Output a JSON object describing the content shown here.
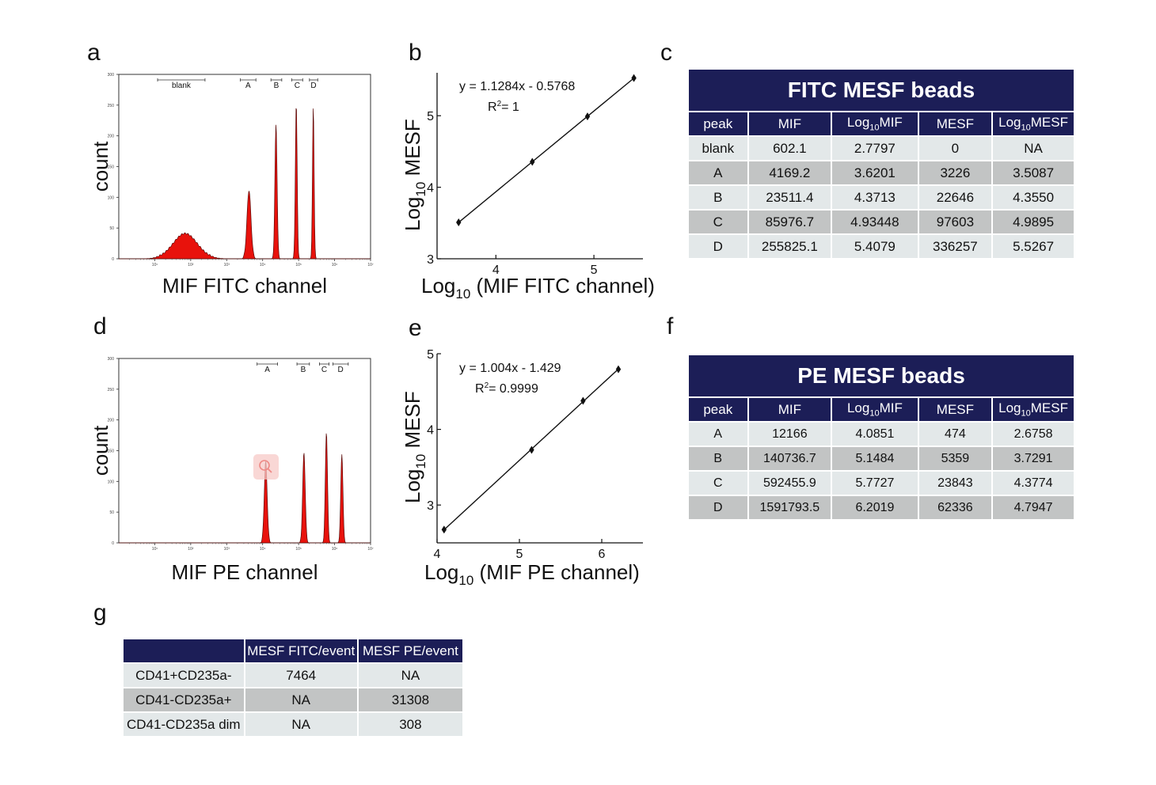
{
  "panels": {
    "a": "a",
    "b": "b",
    "c": "c",
    "d": "d",
    "e": "e",
    "f": "f",
    "g": "g"
  },
  "chart_data": [
    {
      "id": "a",
      "type": "area",
      "xlabel": "MIF FITC channel",
      "ylabel": "count",
      "x_scale": "log",
      "xlim": [
        1,
        10000000
      ],
      "ylim": [
        0,
        300
      ],
      "y_ticks": [
        "0",
        "50",
        "100",
        "150",
        "200",
        "250",
        "300"
      ],
      "x_ticks": [
        "10¹",
        "10²",
        "10³",
        "10⁴",
        "10⁵",
        "10⁶",
        "10⁷"
      ],
      "gates": [
        {
          "label": "blank",
          "from": 12,
          "to": 250
        },
        {
          "label": "A",
          "from": 2400,
          "to": 6500
        },
        {
          "label": "B",
          "from": 17000,
          "to": 34000
        },
        {
          "label": "C",
          "from": 64000,
          "to": 130000
        },
        {
          "label": "D",
          "from": 200000,
          "to": 340000
        }
      ],
      "peaks": [
        {
          "center": 70,
          "height": 40,
          "width": 0.33
        },
        {
          "center": 4169.2,
          "height": 110,
          "width": 0.055
        },
        {
          "center": 23511.4,
          "height": 218,
          "width": 0.03
        },
        {
          "center": 85976.7,
          "height": 252,
          "width": 0.025
        },
        {
          "center": 255825.1,
          "height": 247,
          "width": 0.022
        }
      ],
      "fill_color": "#e8120c"
    },
    {
      "id": "b",
      "type": "scatter",
      "xlabel": "Log10 (MIF FITC channel)",
      "ylabel": "Log10 MESF",
      "xlim": [
        3.4,
        5.5
      ],
      "ylim": [
        3,
        5.6
      ],
      "x_ticks": [
        4,
        5
      ],
      "y_ticks": [
        3,
        4,
        5
      ],
      "points": [
        {
          "x": 3.6201,
          "y": 3.5087
        },
        {
          "x": 4.3713,
          "y": 4.355
        },
        {
          "x": 4.93448,
          "y": 4.9895
        },
        {
          "x": 5.4079,
          "y": 5.5267
        }
      ],
      "fit": {
        "slope": 1.1284,
        "intercept": -0.5768
      },
      "equation": "y = 1.1284x - 0.5768",
      "r2": "= 1"
    },
    {
      "id": "d",
      "type": "area",
      "xlabel": "MIF PE channel",
      "ylabel": "count",
      "x_scale": "log",
      "xlim": [
        1,
        10000000
      ],
      "ylim": [
        0,
        300
      ],
      "y_ticks": [
        "0",
        "50",
        "100",
        "150",
        "200",
        "250",
        "300"
      ],
      "x_ticks": [
        "10¹",
        "10²",
        "10³",
        "10⁴",
        "10⁵",
        "10⁶",
        "10⁷"
      ],
      "gates": [
        {
          "label": "A",
          "from": 7000,
          "to": 26000
        },
        {
          "label": "B",
          "from": 90000,
          "to": 200000
        },
        {
          "label": "C",
          "from": 380000,
          "to": 700000
        },
        {
          "label": "D",
          "from": 900000,
          "to": 2400000
        }
      ],
      "peaks": [
        {
          "center": 12166,
          "height": 131,
          "width": 0.04
        },
        {
          "center": 140736.7,
          "height": 146,
          "width": 0.035
        },
        {
          "center": 592455.9,
          "height": 180,
          "width": 0.03
        },
        {
          "center": 1591793.5,
          "height": 144,
          "width": 0.03
        }
      ],
      "fill_color": "#e8120c"
    },
    {
      "id": "e",
      "type": "scatter",
      "xlabel": "Log10 (MIF PE channel)",
      "ylabel": "Log10 MESF",
      "xlim": [
        4,
        6.5
      ],
      "ylim": [
        2.5,
        5
      ],
      "x_ticks": [
        4,
        5,
        6
      ],
      "y_ticks": [
        3,
        4,
        5
      ],
      "points": [
        {
          "x": 4.0851,
          "y": 2.6758
        },
        {
          "x": 5.1484,
          "y": 3.7291
        },
        {
          "x": 5.7727,
          "y": 4.3774
        },
        {
          "x": 6.2019,
          "y": 4.7947
        }
      ],
      "fit": {
        "slope": 1.004,
        "intercept": -1.429
      },
      "equation": "y = 1.004x - 1.429",
      "r2": "= 0.9999"
    }
  ],
  "table_fitc": {
    "title": "FITC MESF beads",
    "headers": [
      "peak",
      "MIF",
      "Log",
      "MESF",
      "Log"
    ],
    "header_subs": [
      "",
      "",
      "MIF",
      "",
      "MESF"
    ],
    "rows": [
      [
        "blank",
        "602.1",
        "2.7797",
        "0",
        "NA"
      ],
      [
        "A",
        "4169.2",
        "3.6201",
        "3226",
        "3.5087"
      ],
      [
        "B",
        "23511.4",
        "4.3713",
        "22646",
        "4.3550"
      ],
      [
        "C",
        "85976.7",
        "4.93448",
        "97603",
        "4.9895"
      ],
      [
        "D",
        "255825.1",
        "5.4079",
        "336257",
        "5.5267"
      ]
    ]
  },
  "table_pe": {
    "title": "PE MESF beads",
    "headers": [
      "peak",
      "MIF",
      "Log",
      "MESF",
      "Log"
    ],
    "header_subs": [
      "",
      "",
      "MIF",
      "",
      "MESF"
    ],
    "rows": [
      [
        "A",
        "12166",
        "4.0851",
        "474",
        "2.6758"
      ],
      [
        "B",
        "140736.7",
        "5.1484",
        "5359",
        "3.7291"
      ],
      [
        "C",
        "592455.9",
        "5.7727",
        "23843",
        "4.3774"
      ],
      [
        "D",
        "1591793.5",
        "6.2019",
        "62336",
        "4.7947"
      ]
    ]
  },
  "table_g": {
    "headers": [
      "",
      "MESF FITC/event",
      "MESF PE/event"
    ],
    "rows": [
      [
        "CD41+CD235a-",
        "7464",
        "NA"
      ],
      [
        "CD41-CD235a+",
        "NA",
        "31308"
      ],
      [
        "CD41-CD235a dim",
        "NA",
        "308"
      ]
    ]
  },
  "texts": {
    "log_prefix": "Log",
    "log_sub": "10",
    "r2_prefix": "R"
  },
  "colors": {
    "table_header": "#1c1e57",
    "row_light": "#e3e8e9",
    "row_dark": "#c2c4c4",
    "histogram_fill": "#e8120c"
  },
  "icons": {
    "magnifier": "magnifier-icon"
  }
}
